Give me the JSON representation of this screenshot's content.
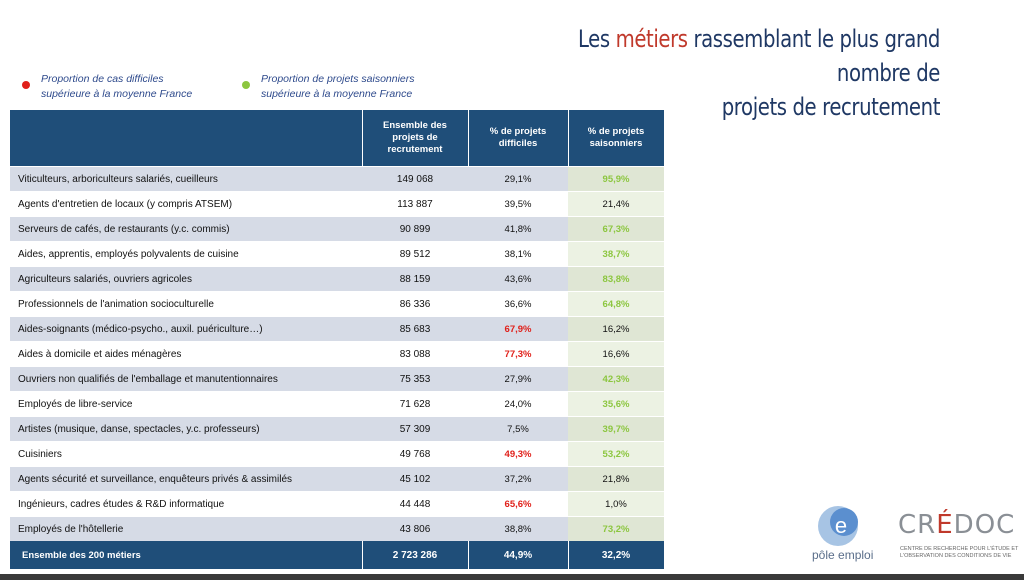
{
  "title": {
    "part1": "Les ",
    "highlight": "métiers",
    "part2": " rassemblant le plus grand nombre de",
    "line2": "projets de recrutement"
  },
  "legend": [
    {
      "text_line1": "Proportion de cas difficiles",
      "text_line2": "supérieure à la moyenne France",
      "color": "#e0201a"
    },
    {
      "text_line1": "Proportion de projets saisonniers",
      "text_line2": "supérieure à la moyenne France",
      "color": "#8cc63f"
    }
  ],
  "table": {
    "headers": [
      "",
      "Ensemble des projets de recrutement",
      "% de projets difficiles",
      "% de projets saisonniers"
    ],
    "rows": [
      {
        "label": "Viticulteurs, arboriculteurs salariés, cueilleurs",
        "projets": "149 068",
        "difficiles": "29,1%",
        "saisonniers": "95,9%",
        "diff_hl": false,
        "seas_hl": true
      },
      {
        "label": "Agents d'entretien de locaux (y compris ATSEM)",
        "projets": "113 887",
        "difficiles": "39,5%",
        "saisonniers": "21,4%",
        "diff_hl": false,
        "seas_hl": false
      },
      {
        "label": "Serveurs de cafés, de restaurants (y.c. commis)",
        "projets": "90 899",
        "difficiles": "41,8%",
        "saisonniers": "67,3%",
        "diff_hl": false,
        "seas_hl": true
      },
      {
        "label": "Aides, apprentis, employés polyvalents de cuisine",
        "projets": "89 512",
        "difficiles": "38,1%",
        "saisonniers": "38,7%",
        "diff_hl": false,
        "seas_hl": true
      },
      {
        "label": "Agriculteurs salariés, ouvriers agricoles",
        "projets": "88 159",
        "difficiles": "43,6%",
        "saisonniers": "83,8%",
        "diff_hl": false,
        "seas_hl": true
      },
      {
        "label": "Professionnels de l'animation socioculturelle",
        "projets": "86 336",
        "difficiles": "36,6%",
        "saisonniers": "64,8%",
        "diff_hl": false,
        "seas_hl": true
      },
      {
        "label": "Aides-soignants (médico-psycho., auxil. puériculture…)",
        "projets": "85 683",
        "difficiles": "67,9%",
        "saisonniers": "16,2%",
        "diff_hl": true,
        "seas_hl": false
      },
      {
        "label": "Aides à domicile et aides ménagères",
        "projets": "83 088",
        "difficiles": "77,3%",
        "saisonniers": "16,6%",
        "diff_hl": true,
        "seas_hl": false
      },
      {
        "label": "Ouvriers non qualifiés de l'emballage et manutentionnaires",
        "projets": "75 353",
        "difficiles": "27,9%",
        "saisonniers": "42,3%",
        "diff_hl": false,
        "seas_hl": true
      },
      {
        "label": "Employés de libre-service",
        "projets": "71 628",
        "difficiles": "24,0%",
        "saisonniers": "35,6%",
        "diff_hl": false,
        "seas_hl": true
      },
      {
        "label": "Artistes (musique, danse, spectacles, y.c. professeurs)",
        "projets": "57 309",
        "difficiles": "7,5%",
        "saisonniers": "39,7%",
        "diff_hl": false,
        "seas_hl": true
      },
      {
        "label": "Cuisiniers",
        "projets": "49 768",
        "difficiles": "49,3%",
        "saisonniers": "53,2%",
        "diff_hl": true,
        "seas_hl": true
      },
      {
        "label": "Agents sécurité et surveillance, enquêteurs privés & assimilés",
        "projets": "45 102",
        "difficiles": "37,2%",
        "saisonniers": "21,8%",
        "diff_hl": false,
        "seas_hl": false
      },
      {
        "label": "Ingénieurs, cadres études & R&D informatique",
        "projets": "44 448",
        "difficiles": "65,6%",
        "saisonniers": "1,0%",
        "diff_hl": true,
        "seas_hl": false
      },
      {
        "label": "Employés de l'hôtellerie",
        "projets": "43 806",
        "difficiles": "38,8%",
        "saisonniers": "73,2%",
        "diff_hl": false,
        "seas_hl": true
      }
    ],
    "footer": {
      "label": "Ensemble des 200 métiers",
      "projets": "2 723 286",
      "difficiles": "44,9%",
      "saisonniers": "32,2%"
    }
  },
  "logos": {
    "pole_emploi": "pôle emploi",
    "credoc_prefix": "CR",
    "credoc_accent": "É",
    "credoc_suffix": "DOC",
    "credoc_sub": "CENTRE DE RECHERCHE POUR L'ÉTUDE ET L'OBSERVATION DES CONDITIONS DE VIE"
  },
  "colors": {
    "header_bg": "#1f4e79",
    "title": "#1f3864",
    "red": "#e0201a",
    "green": "#8cc63f"
  }
}
